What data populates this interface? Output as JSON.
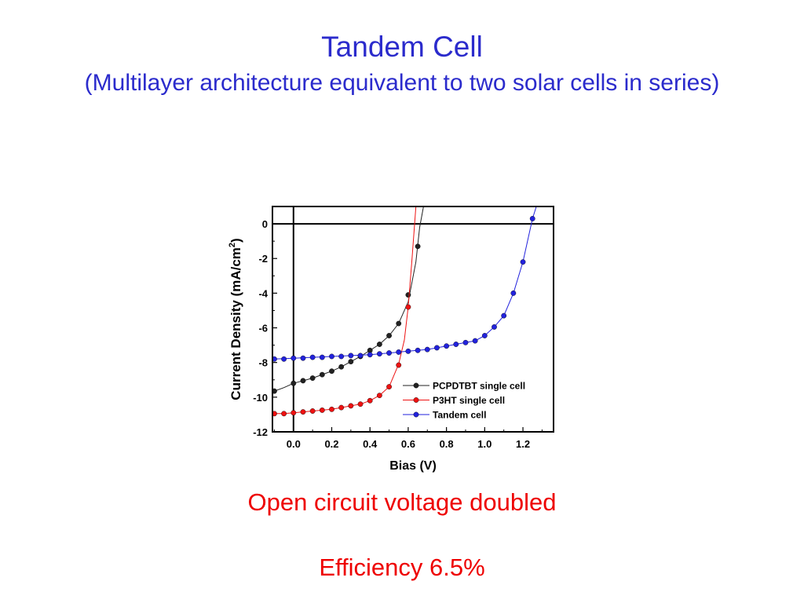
{
  "slide": {
    "title": "Tandem Cell",
    "subtitle": "(Multilayer architecture equivalent to two solar cells in series)",
    "note_voltage": "Open circuit voltage doubled",
    "note_efficiency": "Efficiency 6.5%"
  },
  "colors": {
    "heading": "#2b2bcc",
    "note": "#ee0000"
  },
  "chart_data": {
    "type": "line",
    "title": "",
    "xlabel": "Bias (V)",
    "ylabel_main": "Current Density (mA/cm",
    "ylabel_sup": "2",
    "ylabel_close": ")",
    "xlim": [
      -0.11,
      1.36
    ],
    "ylim": [
      -12,
      1
    ],
    "xticks": [
      0.0,
      0.2,
      0.4,
      0.6,
      0.8,
      1.0,
      1.2
    ],
    "xtick_labels": [
      "0.0",
      "0.2",
      "0.4",
      "0.6",
      "0.8",
      "1.0",
      "1.2"
    ],
    "yticks": [
      0,
      -2,
      -4,
      -6,
      -8,
      -10,
      -12
    ],
    "ytick_labels": [
      "0",
      "-2",
      "-4",
      "-6",
      "-8",
      "-10",
      "-12"
    ],
    "reference_lines": {
      "x": 0,
      "y": 0
    },
    "grid": false,
    "legend_position": "bottom-right",
    "series": [
      {
        "name": "PCPDTBT single cell",
        "color": "#222222",
        "x": [
          -0.1,
          -0.05,
          0.0,
          0.05,
          0.1,
          0.15,
          0.2,
          0.25,
          0.3,
          0.35,
          0.4,
          0.45,
          0.5,
          0.55,
          0.6,
          0.64,
          0.66,
          0.68
        ],
        "y": [
          -9.65,
          -9.45,
          -9.2,
          -9.05,
          -8.9,
          -8.7,
          -8.5,
          -8.25,
          -7.95,
          -7.65,
          -7.3,
          -6.95,
          -6.45,
          -5.75,
          -4.5,
          -2.2,
          -0.2,
          1.0
        ],
        "markers": [
          [
            -0.1,
            -9.65
          ],
          [
            0.0,
            -9.2
          ],
          [
            0.05,
            -9.05
          ],
          [
            0.1,
            -8.9
          ],
          [
            0.15,
            -8.7
          ],
          [
            0.2,
            -8.5
          ],
          [
            0.25,
            -8.25
          ],
          [
            0.3,
            -7.95
          ],
          [
            0.35,
            -7.65
          ],
          [
            0.4,
            -7.3
          ],
          [
            0.45,
            -6.95
          ],
          [
            0.5,
            -6.45
          ],
          [
            0.55,
            -5.75
          ],
          [
            0.6,
            -4.1
          ],
          [
            0.65,
            -1.3
          ]
        ]
      },
      {
        "name": "P3HT single cell",
        "color": "#ee1111",
        "x": [
          -0.1,
          -0.05,
          0.0,
          0.05,
          0.1,
          0.15,
          0.2,
          0.25,
          0.3,
          0.35,
          0.4,
          0.45,
          0.5,
          0.55,
          0.58,
          0.6,
          0.62,
          0.64
        ],
        "y": [
          -10.95,
          -10.95,
          -10.9,
          -10.85,
          -10.8,
          -10.75,
          -10.7,
          -10.6,
          -10.5,
          -10.4,
          -10.2,
          -9.9,
          -9.4,
          -8.1,
          -6.7,
          -4.8,
          -2.0,
          1.0
        ],
        "markers": [
          [
            -0.1,
            -10.95
          ],
          [
            -0.05,
            -10.95
          ],
          [
            0.0,
            -10.9
          ],
          [
            0.05,
            -10.85
          ],
          [
            0.1,
            -10.8
          ],
          [
            0.15,
            -10.75
          ],
          [
            0.2,
            -10.7
          ],
          [
            0.25,
            -10.6
          ],
          [
            0.3,
            -10.5
          ],
          [
            0.35,
            -10.4
          ],
          [
            0.4,
            -10.2
          ],
          [
            0.45,
            -9.9
          ],
          [
            0.5,
            -9.4
          ],
          [
            0.55,
            -8.15
          ],
          [
            0.6,
            -4.8
          ]
        ]
      },
      {
        "name": "Tandem cell",
        "color": "#2222dd",
        "x": [
          -0.1,
          0.0,
          0.1,
          0.2,
          0.3,
          0.4,
          0.5,
          0.6,
          0.7,
          0.8,
          0.9,
          0.95,
          1.0,
          1.05,
          1.1,
          1.15,
          1.2,
          1.25,
          1.27
        ],
        "y": [
          -7.8,
          -7.75,
          -7.7,
          -7.65,
          -7.6,
          -7.55,
          -7.45,
          -7.35,
          -7.25,
          -7.05,
          -6.85,
          -6.75,
          -6.45,
          -5.95,
          -5.3,
          -4.0,
          -2.2,
          0.3,
          1.0
        ],
        "markers": [
          [
            -0.1,
            -7.8
          ],
          [
            -0.05,
            -7.8
          ],
          [
            0.0,
            -7.75
          ],
          [
            0.05,
            -7.75
          ],
          [
            0.1,
            -7.7
          ],
          [
            0.15,
            -7.7
          ],
          [
            0.2,
            -7.65
          ],
          [
            0.25,
            -7.65
          ],
          [
            0.3,
            -7.6
          ],
          [
            0.35,
            -7.6
          ],
          [
            0.4,
            -7.55
          ],
          [
            0.45,
            -7.5
          ],
          [
            0.5,
            -7.45
          ],
          [
            0.55,
            -7.4
          ],
          [
            0.6,
            -7.35
          ],
          [
            0.65,
            -7.3
          ],
          [
            0.7,
            -7.25
          ],
          [
            0.75,
            -7.15
          ],
          [
            0.8,
            -7.05
          ],
          [
            0.85,
            -6.95
          ],
          [
            0.9,
            -6.85
          ],
          [
            0.95,
            -6.75
          ],
          [
            1.0,
            -6.45
          ],
          [
            1.05,
            -5.95
          ],
          [
            1.1,
            -5.3
          ],
          [
            1.15,
            -4.0
          ],
          [
            1.2,
            -2.2
          ],
          [
            1.25,
            0.3
          ]
        ]
      }
    ]
  }
}
